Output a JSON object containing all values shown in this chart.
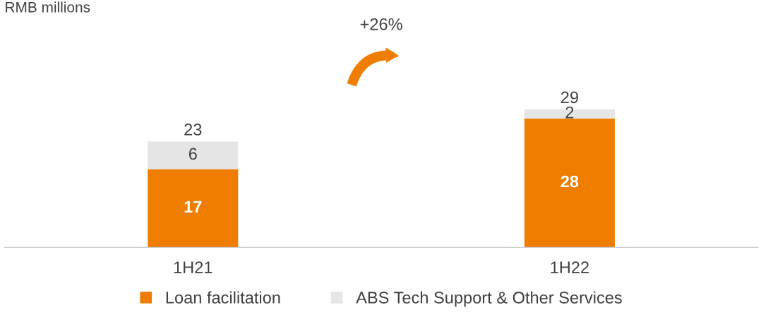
{
  "chart_data": {
    "type": "bar",
    "stacked": true,
    "categories": [
      "1H21",
      "1H22"
    ],
    "series": [
      {
        "name": "Loan facilitation",
        "color": "#ee7d00",
        "values": [
          17,
          28
        ]
      },
      {
        "name": "ABS Tech Support & Other Services",
        "color": "#e5e5e5",
        "values": [
          6,
          2
        ]
      }
    ],
    "data_labels": true,
    "totals": [
      "23",
      "29"
    ],
    "tick_labels": "x",
    "legend": "bottom",
    "annotations": [
      "RMB millions",
      "+26%"
    ]
  }
}
